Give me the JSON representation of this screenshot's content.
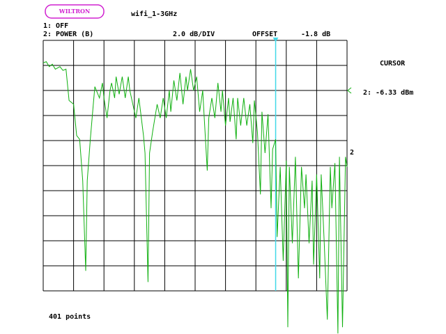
{
  "chart_data": {
    "type": "line",
    "logo": "WILTRON",
    "title": "wifi_1-3GHz",
    "channel_1": "1: OFF",
    "channel_2": "2: POWER (B)",
    "scale": "2.0 dB/DIV",
    "offset_label": "OFFSET",
    "offset_value": "-1.8 dB",
    "cursor_label": "CURSOR",
    "cursor_readout": "2: -6.33 dBm",
    "trace_label": "2",
    "points_label": "401 points",
    "xlim": [
      1,
      3
    ],
    "ylim": [
      -18.4,
      1.6
    ],
    "color": "#10b010",
    "cursor_color": "#40d8e8",
    "cursor_x": 2.53,
    "x": [
      1.0,
      1.02,
      1.04,
      1.06,
      1.08,
      1.11,
      1.13,
      1.15,
      1.17,
      1.2,
      1.22,
      1.24,
      1.26,
      1.28,
      1.29,
      1.31,
      1.33,
      1.34,
      1.37,
      1.39,
      1.4,
      1.42,
      1.44,
      1.45,
      1.47,
      1.48,
      1.5,
      1.52,
      1.54,
      1.56,
      1.57,
      1.59,
      1.61,
      1.63,
      1.66,
      1.67,
      1.69,
      1.7,
      1.72,
      1.75,
      1.77,
      1.79,
      1.81,
      1.83,
      1.84,
      1.86,
      1.88,
      1.9,
      1.92,
      1.94,
      1.95,
      1.97,
      1.99,
      2.01,
      2.03,
      2.05,
      2.06,
      2.08,
      2.09,
      2.11,
      2.13,
      2.15,
      2.17,
      2.18,
      2.2,
      2.22,
      2.23,
      2.25,
      2.27,
      2.28,
      2.3,
      2.32,
      2.34,
      2.36,
      2.38,
      2.39,
      2.41,
      2.43,
      2.44,
      2.46,
      2.48,
      2.5,
      2.51,
      2.53,
      2.54,
      2.56,
      2.58,
      2.6,
      2.61,
      2.62,
      2.64,
      2.66,
      2.68,
      2.7,
      2.72,
      2.73,
      2.75,
      2.77,
      2.78,
      2.8,
      2.82,
      2.83,
      2.85,
      2.87,
      2.89,
      2.9,
      2.92,
      2.94,
      2.95,
      2.97,
      2.99,
      3.0
    ],
    "values": [
      -0.2,
      -0.1,
      -0.5,
      -0.3,
      -0.7,
      -0.5,
      -0.8,
      -0.7,
      -3.2,
      -3.5,
      -6.0,
      -6.3,
      -9.6,
      -16.8,
      -9.6,
      -6.3,
      -3.5,
      -2.1,
      -3.0,
      -1.8,
      -3.0,
      -4.6,
      -2.4,
      -1.8,
      -3.0,
      -1.3,
      -2.7,
      -1.3,
      -3.0,
      -1.3,
      -2.4,
      -3.5,
      -4.6,
      -3.0,
      -6.0,
      -7.4,
      -17.7,
      -7.4,
      -5.7,
      -3.5,
      -4.6,
      -3.0,
      -4.6,
      -2.4,
      -4.1,
      -1.6,
      -3.2,
      -1.0,
      -3.5,
      -1.3,
      -2.4,
      -0.7,
      -2.4,
      -1.3,
      -4.1,
      -2.4,
      -4.6,
      -8.8,
      -4.6,
      -3.0,
      -4.6,
      -1.8,
      -4.1,
      -2.4,
      -5.2,
      -3.0,
      -4.9,
      -3.0,
      -6.3,
      -3.0,
      -5.2,
      -3.0,
      -5.2,
      -3.5,
      -6.6,
      -3.2,
      -5.7,
      -10.7,
      -4.1,
      -7.4,
      -4.3,
      -11.8,
      -7.1,
      -6.3,
      -14.1,
      -8.5,
      -16.0,
      -8.0,
      -21.3,
      -8.5,
      -14.6,
      -7.7,
      -17.4,
      -8.5,
      -11.8,
      -9.1,
      -14.6,
      -9.6,
      -16.3,
      -9.1,
      -17.4,
      -9.1,
      -14.6,
      -20.7,
      -8.5,
      -11.8,
      -8.2,
      -21.8,
      -7.7,
      -21.3,
      -7.7,
      -8.5
    ]
  }
}
